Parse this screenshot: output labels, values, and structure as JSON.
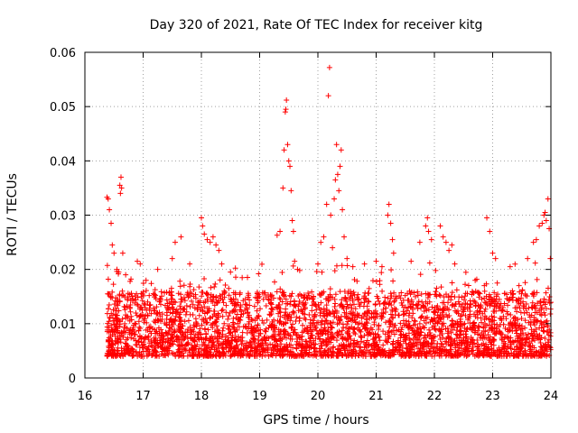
{
  "chart_data": {
    "type": "scatter",
    "title": "Day 320 of 2021, Rate Of TEC Index for receiver kitg",
    "xlabel": "GPS time / hours",
    "ylabel": "ROTI / TECUs",
    "xlim": [
      16,
      24
    ],
    "ylim": [
      0,
      0.06
    ],
    "x_ticks": [
      16,
      17,
      18,
      19,
      20,
      21,
      22,
      23,
      24
    ],
    "x_tick_labels": [
      "16",
      "17",
      "18",
      "19",
      "20",
      "21",
      "22",
      "23",
      "24"
    ],
    "y_ticks": [
      0,
      0.01,
      0.02,
      0.03,
      0.04,
      0.05,
      0.06
    ],
    "y_tick_labels": [
      "0",
      "0.01",
      "0.02",
      "0.03",
      "0.04",
      "0.05",
      "0.06"
    ],
    "grid": true,
    "marker": "+",
    "color": "#ff0000",
    "series": [
      {
        "name": "ROTI",
        "points": [
          [
            16.38,
            0.0333
          ],
          [
            16.4,
            0.033
          ],
          [
            16.42,
            0.031
          ],
          [
            16.45,
            0.0285
          ],
          [
            16.47,
            0.0245
          ],
          [
            16.5,
            0.023
          ],
          [
            16.55,
            0.02
          ],
          [
            16.58,
            0.0195
          ],
          [
            16.6,
            0.0355
          ],
          [
            16.62,
            0.037
          ],
          [
            16.63,
            0.035
          ],
          [
            16.61,
            0.034
          ],
          [
            16.65,
            0.023
          ],
          [
            16.7,
            0.019
          ],
          [
            16.9,
            0.0215
          ],
          [
            16.95,
            0.021
          ],
          [
            17.05,
            0.018
          ],
          [
            17.25,
            0.02
          ],
          [
            17.5,
            0.022
          ],
          [
            17.55,
            0.025
          ],
          [
            17.65,
            0.026
          ],
          [
            17.8,
            0.021
          ],
          [
            18.0,
            0.0295
          ],
          [
            18.02,
            0.028
          ],
          [
            18.05,
            0.0265
          ],
          [
            18.1,
            0.0255
          ],
          [
            18.15,
            0.025
          ],
          [
            18.2,
            0.026
          ],
          [
            18.25,
            0.0245
          ],
          [
            18.3,
            0.0235
          ],
          [
            18.35,
            0.021
          ],
          [
            18.5,
            0.0195
          ],
          [
            18.7,
            0.0185
          ],
          [
            19.3,
            0.0263
          ],
          [
            19.35,
            0.027
          ],
          [
            19.4,
            0.035
          ],
          [
            19.42,
            0.042
          ],
          [
            19.44,
            0.049
          ],
          [
            19.45,
            0.0495
          ],
          [
            19.46,
            0.0512
          ],
          [
            19.48,
            0.043
          ],
          [
            19.5,
            0.04
          ],
          [
            19.52,
            0.039
          ],
          [
            19.54,
            0.0345
          ],
          [
            19.56,
            0.029
          ],
          [
            19.58,
            0.027
          ],
          [
            19.6,
            0.0215
          ],
          [
            19.65,
            0.02
          ],
          [
            20.0,
            0.021
          ],
          [
            20.05,
            0.025
          ],
          [
            20.1,
            0.026
          ],
          [
            20.15,
            0.032
          ],
          [
            20.18,
            0.052
          ],
          [
            20.2,
            0.0572
          ],
          [
            20.22,
            0.03
          ],
          [
            20.25,
            0.024
          ],
          [
            20.28,
            0.033
          ],
          [
            20.3,
            0.0365
          ],
          [
            20.32,
            0.043
          ],
          [
            20.34,
            0.0375
          ],
          [
            20.36,
            0.0345
          ],
          [
            20.38,
            0.039
          ],
          [
            20.4,
            0.042
          ],
          [
            20.42,
            0.031
          ],
          [
            20.45,
            0.026
          ],
          [
            20.5,
            0.022
          ],
          [
            20.6,
            0.0205
          ],
          [
            20.8,
            0.021
          ],
          [
            21.0,
            0.0215
          ],
          [
            21.1,
            0.0205
          ],
          [
            21.2,
            0.03
          ],
          [
            21.22,
            0.032
          ],
          [
            21.25,
            0.0285
          ],
          [
            21.28,
            0.0255
          ],
          [
            21.3,
            0.023
          ],
          [
            21.6,
            0.0215
          ],
          [
            21.75,
            0.025
          ],
          [
            21.85,
            0.028
          ],
          [
            21.88,
            0.0295
          ],
          [
            21.9,
            0.027
          ],
          [
            21.95,
            0.0255
          ],
          [
            22.1,
            0.028
          ],
          [
            22.15,
            0.026
          ],
          [
            22.2,
            0.025
          ],
          [
            22.25,
            0.0235
          ],
          [
            22.3,
            0.0245
          ],
          [
            22.35,
            0.021
          ],
          [
            22.7,
            0.018
          ],
          [
            22.9,
            0.0295
          ],
          [
            22.95,
            0.027
          ],
          [
            23.0,
            0.023
          ],
          [
            23.05,
            0.022
          ],
          [
            23.3,
            0.0205
          ],
          [
            23.6,
            0.022
          ],
          [
            23.7,
            0.025
          ],
          [
            23.75,
            0.0255
          ],
          [
            23.8,
            0.028
          ],
          [
            23.85,
            0.0285
          ],
          [
            23.88,
            0.03
          ],
          [
            23.9,
            0.0305
          ],
          [
            23.92,
            0.029
          ],
          [
            23.95,
            0.033
          ],
          [
            23.97,
            0.0275
          ],
          [
            23.99,
            0.022
          ]
        ]
      }
    ]
  }
}
